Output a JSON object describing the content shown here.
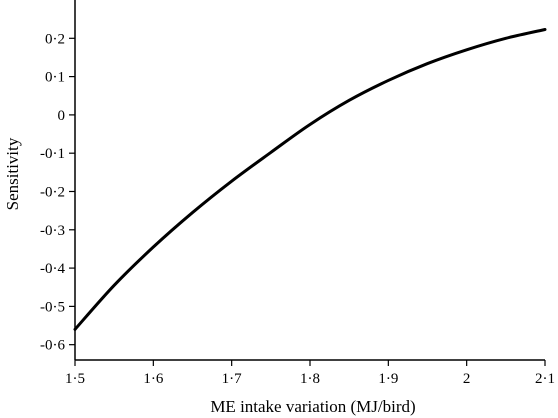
{
  "chart_data": {
    "type": "line",
    "title": "",
    "xlabel": "ME intake variation (MJ/bird)",
    "ylabel": "Sensitivity",
    "xlim": [
      1.5,
      2.1
    ],
    "ylim": [
      -0.64,
      0.3
    ],
    "x_ticks": [
      {
        "value": 1.5,
        "label": "1·5"
      },
      {
        "value": 1.6,
        "label": "1·6"
      },
      {
        "value": 1.7,
        "label": "1·7"
      },
      {
        "value": 1.8,
        "label": "1·8"
      },
      {
        "value": 1.9,
        "label": "1·9"
      },
      {
        "value": 2.0,
        "label": "2"
      },
      {
        "value": 2.1,
        "label": "2·1"
      }
    ],
    "y_ticks": [
      {
        "value": 0.2,
        "label": "0·2"
      },
      {
        "value": 0.1,
        "label": "0·1"
      },
      {
        "value": 0.0,
        "label": "0"
      },
      {
        "value": -0.1,
        "label": "-0·1"
      },
      {
        "value": -0.2,
        "label": "-0·2"
      },
      {
        "value": -0.3,
        "label": "-0·3"
      },
      {
        "value": -0.4,
        "label": "-0·4"
      },
      {
        "value": -0.5,
        "label": "-0·5"
      },
      {
        "value": -0.6,
        "label": "-0·6"
      }
    ],
    "grid": false,
    "legend": "none",
    "series": [
      {
        "color": "#000000",
        "x": [
          1.5,
          1.55,
          1.6,
          1.65,
          1.7,
          1.75,
          1.8,
          1.85,
          1.9,
          1.95,
          2.0,
          2.05,
          2.1
        ],
        "y": [
          -0.56,
          -0.445,
          -0.345,
          -0.255,
          -0.173,
          -0.098,
          -0.025,
          0.038,
          0.09,
          0.134,
          0.17,
          0.2,
          0.223
        ]
      }
    ]
  }
}
